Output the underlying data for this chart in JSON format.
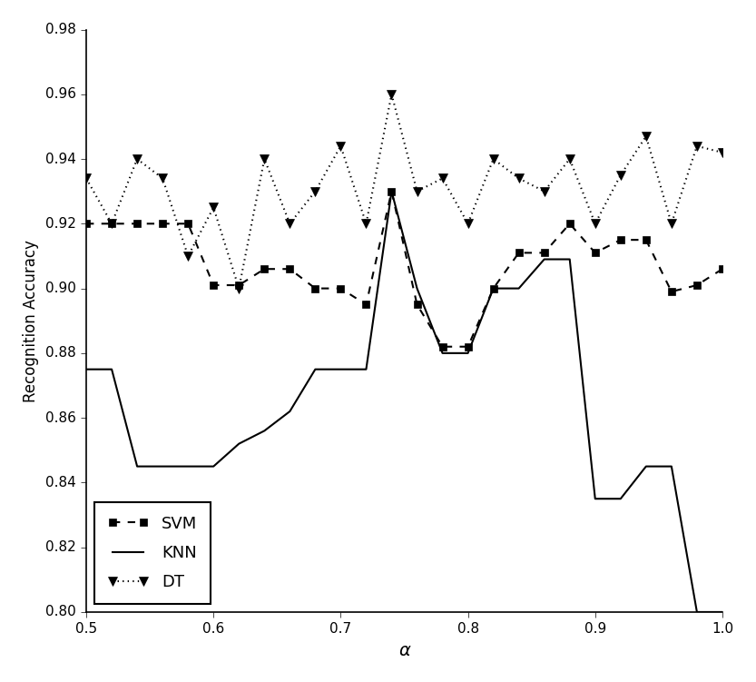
{
  "alpha": [
    0.5,
    0.52,
    0.54,
    0.56,
    0.58,
    0.6,
    0.62,
    0.64,
    0.66,
    0.68,
    0.7,
    0.72,
    0.74,
    0.76,
    0.78,
    0.8,
    0.82,
    0.84,
    0.86,
    0.88,
    0.9,
    0.92,
    0.94,
    0.96,
    0.98,
    1.0
  ],
  "svm": [
    0.92,
    0.92,
    0.92,
    0.92,
    0.92,
    0.901,
    0.901,
    0.906,
    0.906,
    0.9,
    0.9,
    0.895,
    0.93,
    0.895,
    0.882,
    0.882,
    0.9,
    0.911,
    0.911,
    0.92,
    0.911,
    0.915,
    0.915,
    0.899,
    0.901,
    0.906
  ],
  "knn": [
    0.875,
    0.875,
    0.845,
    0.845,
    0.845,
    0.845,
    0.852,
    0.856,
    0.862,
    0.875,
    0.875,
    0.875,
    0.93,
    0.9,
    0.88,
    0.88,
    0.9,
    0.9,
    0.909,
    0.909,
    0.835,
    0.835,
    0.845,
    0.845,
    0.8,
    0.8
  ],
  "dt": [
    0.934,
    0.92,
    0.94,
    0.934,
    0.91,
    0.925,
    0.9,
    0.94,
    0.92,
    0.93,
    0.944,
    0.92,
    0.96,
    0.93,
    0.934,
    0.92,
    0.94,
    0.934,
    0.93,
    0.94,
    0.92,
    0.935,
    0.947,
    0.92,
    0.944,
    0.942
  ],
  "xlabel": "α",
  "ylabel": "Recognition Accuracy",
  "xlim": [
    0.5,
    1.0
  ],
  "ylim": [
    0.8,
    0.98
  ],
  "xticks": [
    0.5,
    0.6,
    0.7,
    0.8,
    0.9,
    1.0
  ],
  "yticks": [
    0.8,
    0.82,
    0.84,
    0.86,
    0.88,
    0.9,
    0.92,
    0.94,
    0.96,
    0.98
  ],
  "legend_labels": [
    "SVM",
    "KNN",
    "DT"
  ],
  "line_color": "black",
  "background_color": "white",
  "fig_facecolor": "white"
}
